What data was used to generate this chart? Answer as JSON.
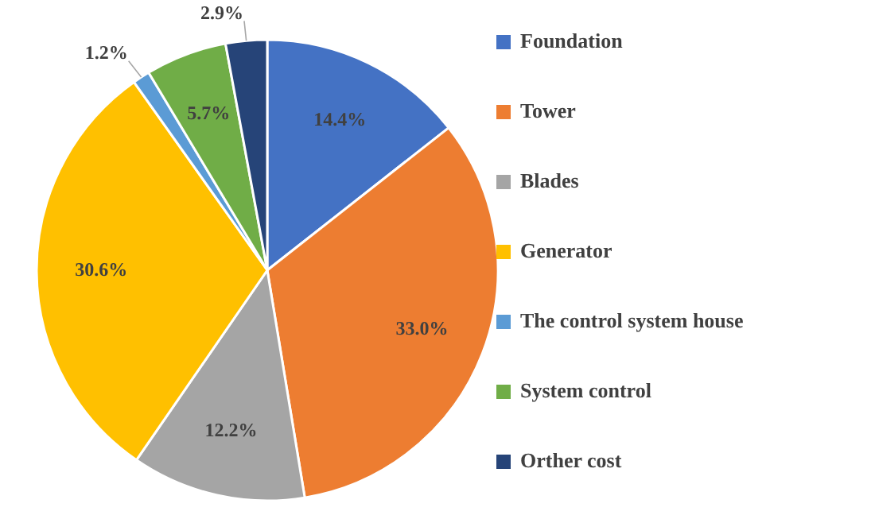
{
  "chart_data": {
    "type": "pie",
    "categories": [
      "Foundation",
      "Tower",
      "Blades",
      "Generator",
      "The control system house",
      "System control",
      "Orther cost"
    ],
    "values": [
      14.4,
      33.0,
      12.2,
      30.6,
      1.2,
      5.7,
      2.9
    ],
    "colors": [
      "#4472c4",
      "#ed7d31",
      "#a5a5a5",
      "#ffc000",
      "#5b9bd5",
      "#70ad47",
      "#264478"
    ],
    "value_labels": [
      "14.4%",
      "33.0%",
      "12.2%",
      "30.6%",
      "1.2%",
      "5.7%",
      "2.9%"
    ],
    "legend": "right"
  }
}
